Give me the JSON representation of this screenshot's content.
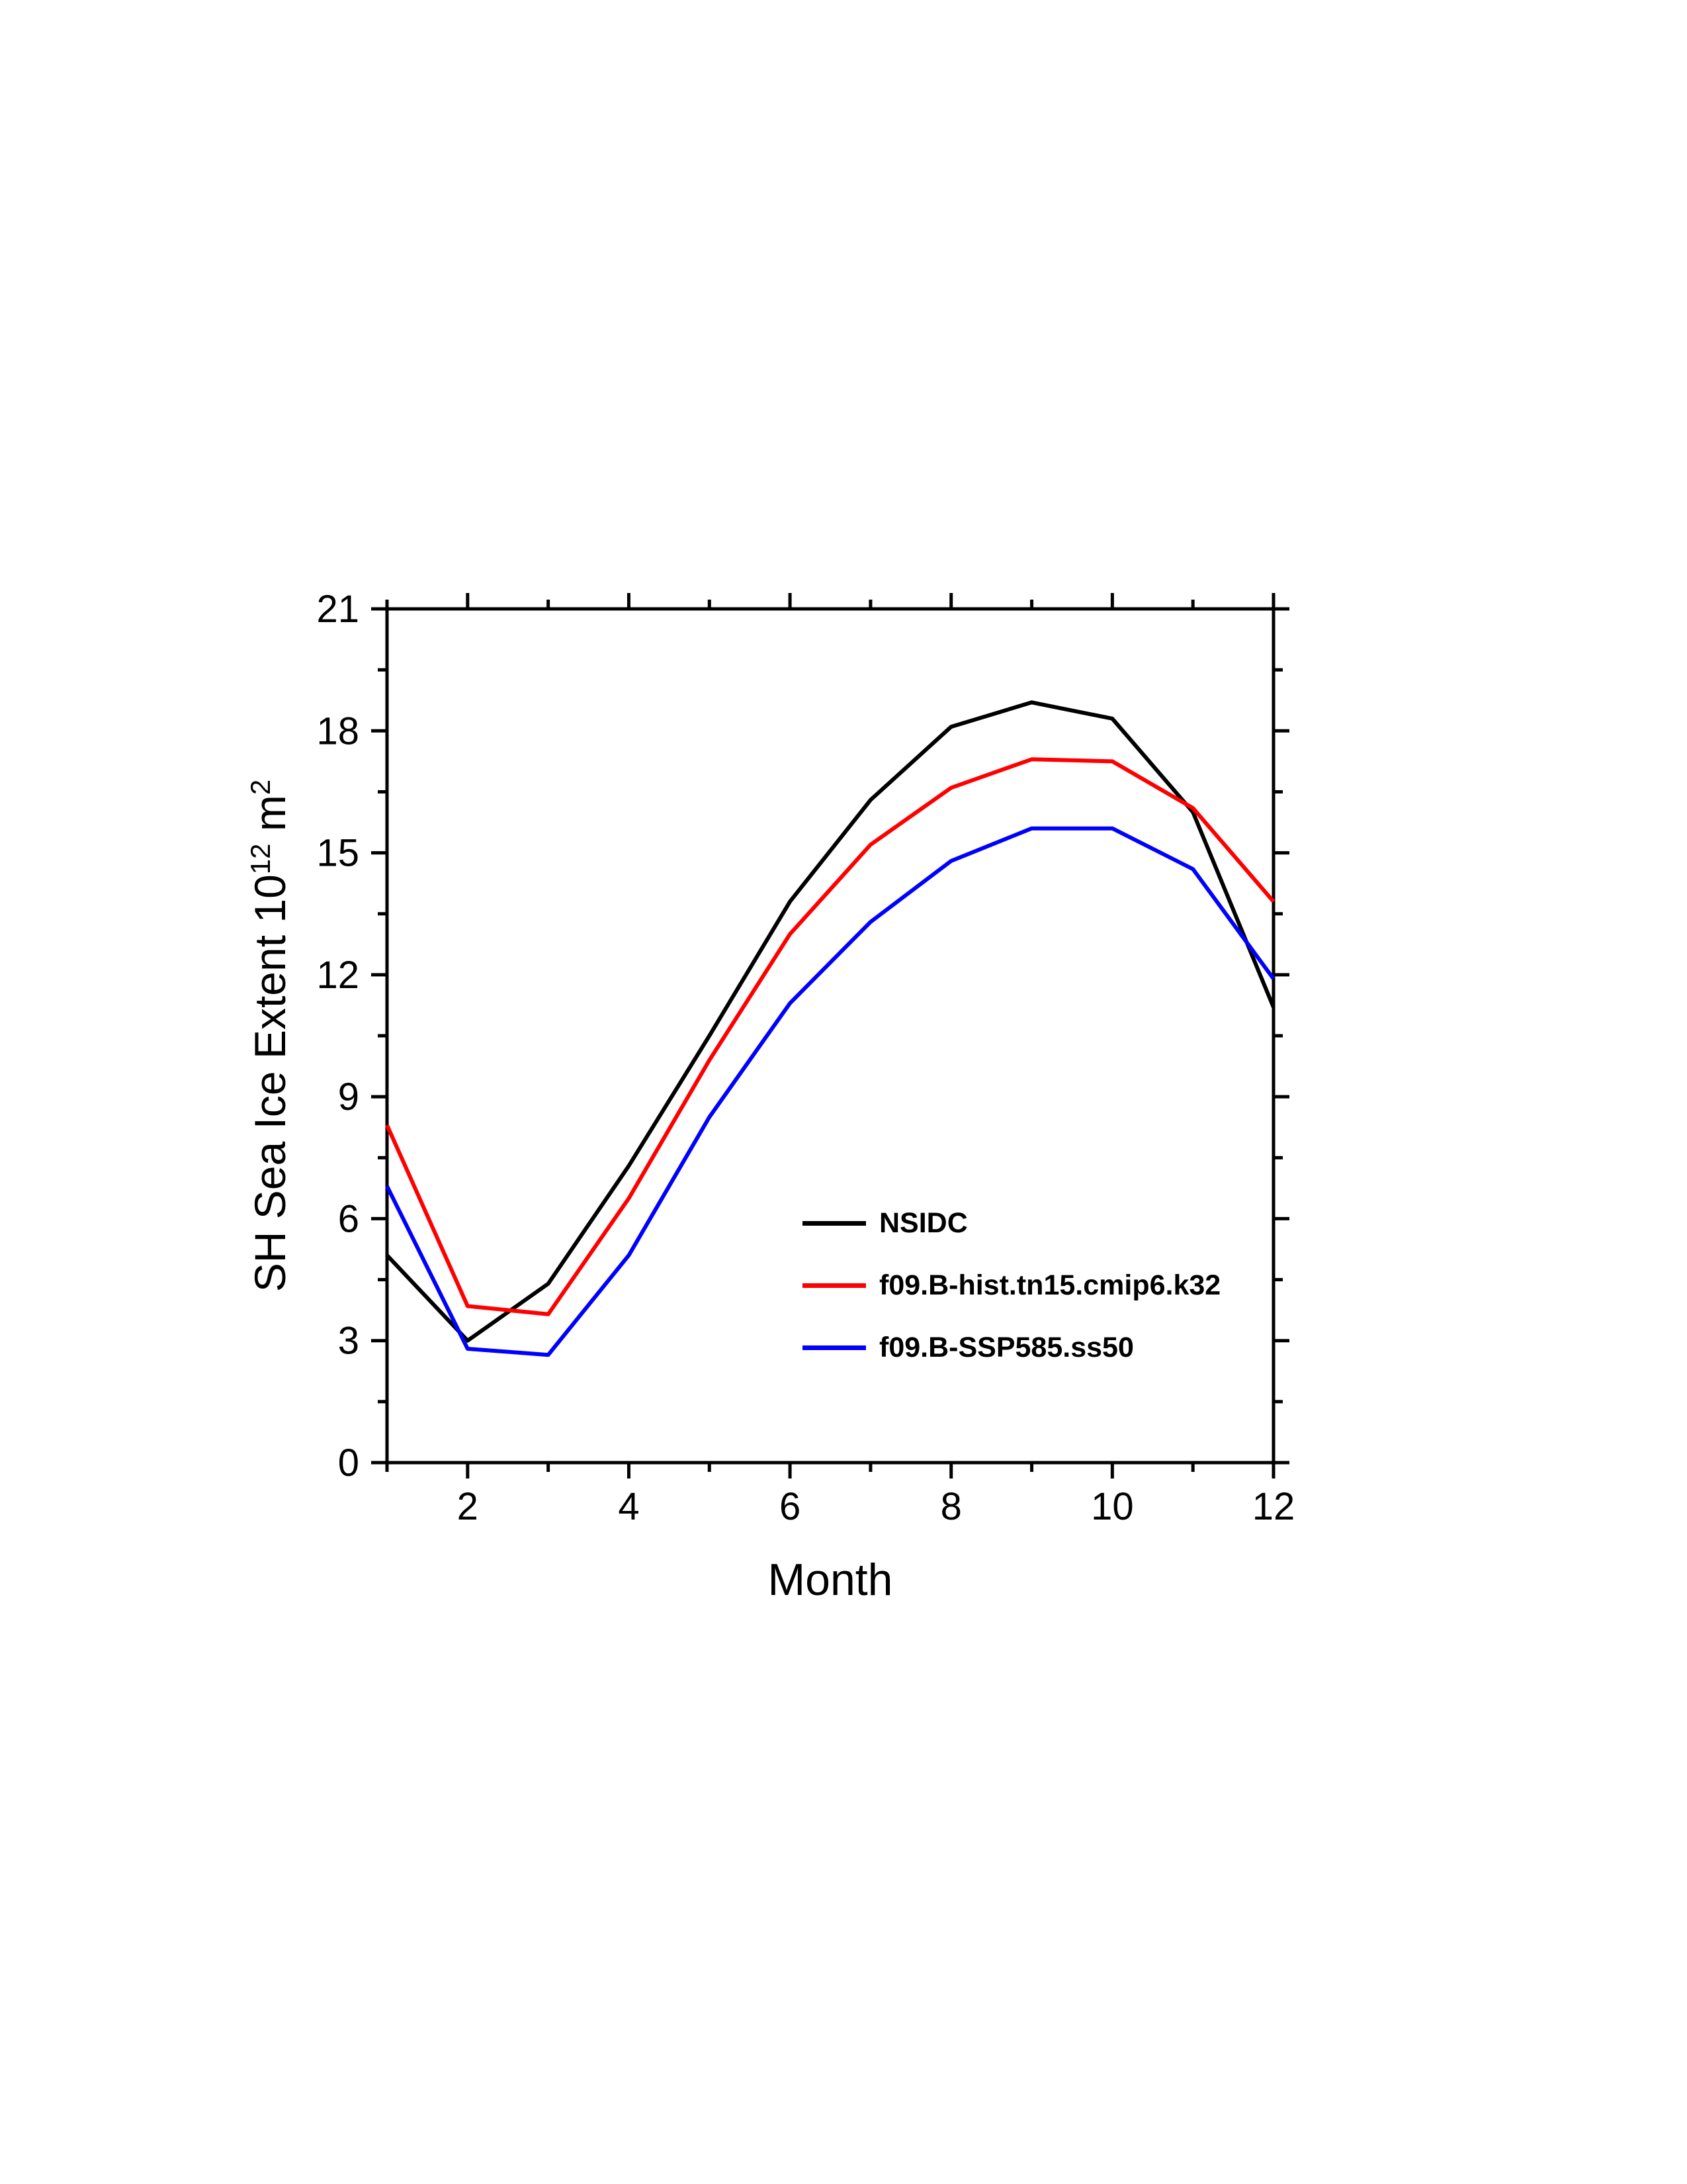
{
  "chart_data": {
    "type": "line",
    "title": "",
    "xlabel": "Month",
    "ylabel": "SH Sea Ice Extent 10^12 m^2",
    "ylabel_parts": {
      "prefix": "SH Sea Ice Extent 10",
      "sup1": "12",
      "mid": " m",
      "sup2": "2"
    },
    "x": [
      1,
      2,
      3,
      4,
      5,
      6,
      7,
      8,
      9,
      10,
      11,
      12
    ],
    "xlim": [
      1,
      12
    ],
    "ylim": [
      0,
      21
    ],
    "x_major_ticks": [
      2,
      4,
      6,
      8,
      10,
      12
    ],
    "x_minor_ticks": [
      1,
      3,
      5,
      7,
      9,
      11
    ],
    "y_major_ticks": [
      0,
      3,
      6,
      9,
      12,
      15,
      18,
      21
    ],
    "y_minor_step": 1.5,
    "grid": false,
    "legend_position": "inside-lower-middle",
    "frame_color": "#000000",
    "series": [
      {
        "name": "NSIDC",
        "color": "#000000",
        "values": [
          5.1,
          3.0,
          4.4,
          7.3,
          10.5,
          13.8,
          16.3,
          18.1,
          18.7,
          18.3,
          16.0,
          11.2
        ]
      },
      {
        "name": "f09.B-hist.tn15.cmip6.k32",
        "color": "#ff0000",
        "values": [
          8.3,
          3.85,
          3.65,
          6.5,
          9.9,
          13.0,
          15.2,
          16.6,
          17.3,
          17.25,
          16.1,
          13.8
        ]
      },
      {
        "name": "f09.B-SSP585.ss50",
        "color": "#0000ff",
        "values": [
          6.8,
          2.8,
          2.65,
          5.1,
          8.5,
          11.3,
          13.3,
          14.8,
          15.6,
          15.6,
          14.6,
          11.9
        ]
      }
    ]
  }
}
